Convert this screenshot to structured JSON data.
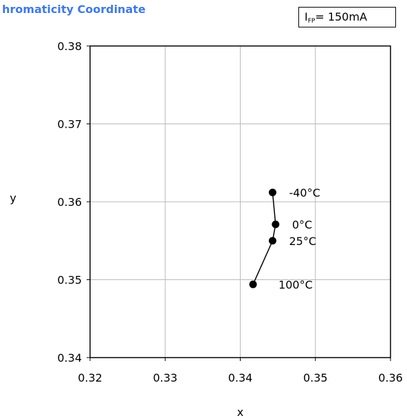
{
  "header": {
    "title": "hromaticity Coordinate",
    "condition": {
      "symbol": "I",
      "subscript": "FP",
      "value": "= 150mA"
    }
  },
  "chart_data": {
    "type": "line",
    "title": "hromaticity Coordinate",
    "xlabel": "x",
    "ylabel": "y",
    "xlim": [
      0.32,
      0.36
    ],
    "ylim": [
      0.34,
      0.38
    ],
    "xticks": [
      "0.32",
      "0.33",
      "0.34",
      "0.35",
      "0.36"
    ],
    "yticks": [
      "0.34",
      "0.35",
      "0.36",
      "0.37",
      "0.38"
    ],
    "grid": true,
    "series": [
      {
        "points": [
          {
            "x": 0.3443,
            "y": 0.3612,
            "label": "-40°C"
          },
          {
            "x": 0.3447,
            "y": 0.3571,
            "label": "0°C"
          },
          {
            "x": 0.3443,
            "y": 0.355,
            "label": "25°C"
          },
          {
            "x": 0.3417,
            "y": 0.3494,
            "label": "100°C"
          }
        ]
      }
    ]
  }
}
